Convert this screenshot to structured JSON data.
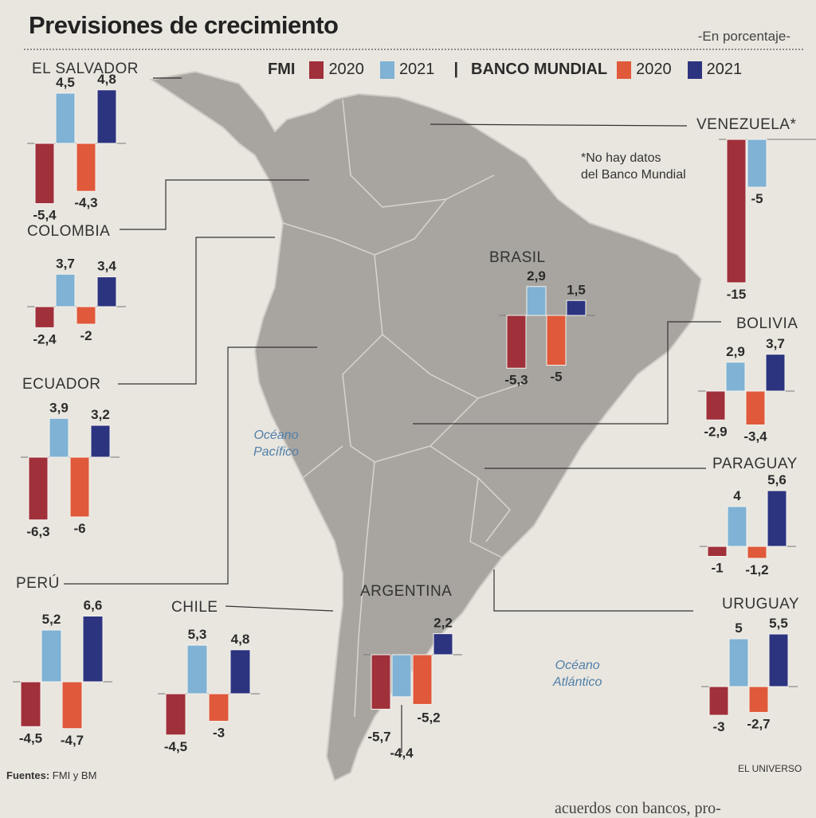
{
  "header": {
    "title": "Previsiones de crecimiento",
    "subtitle": "-En porcentaje-"
  },
  "legend": {
    "fmi_label": "FMI",
    "fmi_2020": "2020",
    "fmi_2021": "2021",
    "bm_label": "BANCO MUNDIAL",
    "bm_2020": "2020",
    "bm_2021": "2021"
  },
  "colors": {
    "fmi_2020": "#a0303a",
    "fmi_2021": "#7fb2d4",
    "bm_2020": "#e0593a",
    "bm_2021": "#2c3480",
    "map": "#a8a5a0",
    "paper": "#e9e6df"
  },
  "notes": {
    "venezuela_line1": "*No hay datos",
    "venezuela_line2": "del Banco Mundial"
  },
  "oceans": {
    "pacific_1": "Océano",
    "pacific_2": "Pacífico",
    "atlantic_1": "Océano",
    "atlantic_2": "Atlántico"
  },
  "footer": {
    "sources_label": "Fuentes:",
    "sources_value": "FMI y BM",
    "credit": "EL UNIVERSO"
  },
  "bottom_fragment": "acuerdos con bancos, pro-",
  "chart_data": {
    "type": "bar",
    "title": "Previsiones de crecimiento",
    "ylabel": "En porcentaje",
    "series_names": [
      "FMI 2020",
      "FMI 2021",
      "Banco Mundial 2020",
      "Banco Mundial 2021"
    ],
    "countries": [
      {
        "name": "EL SALVADOR",
        "values": [
          -5.4,
          4.5,
          -4.3,
          4.8
        ],
        "labels": [
          "-5,4",
          "4,5",
          "-4,3",
          "4,8"
        ]
      },
      {
        "name": "COLOMBIA",
        "values": [
          -2.4,
          3.7,
          -2,
          3.4
        ],
        "labels": [
          "-2,4",
          "3,7",
          "-2",
          "3,4"
        ]
      },
      {
        "name": "ECUADOR",
        "values": [
          -6.3,
          3.9,
          -6,
          3.2
        ],
        "labels": [
          "-6,3",
          "3,9",
          "-6",
          "3,2"
        ]
      },
      {
        "name": "PERÚ",
        "values": [
          -4.5,
          5.2,
          -4.7,
          6.6
        ],
        "labels": [
          "-4,5",
          "5,2",
          "-4,7",
          "6,6"
        ]
      },
      {
        "name": "CHILE",
        "values": [
          -4.5,
          5.3,
          -3,
          4.8
        ],
        "labels": [
          "-4,5",
          "5,3",
          "-3",
          "4,8"
        ]
      },
      {
        "name": "ARGENTINA",
        "values": [
          -5.7,
          -4.4,
          -5.2,
          2.2
        ],
        "labels": [
          "-5,7",
          "-4,4",
          "-5,2",
          "2,2"
        ]
      },
      {
        "name": "BRASIL",
        "values": [
          -5.3,
          2.9,
          -5,
          1.5
        ],
        "labels": [
          "-5,3",
          "2,9",
          "-5",
          "1,5"
        ]
      },
      {
        "name": "VENEZUELA*",
        "values": [
          -15,
          -5,
          null,
          null
        ],
        "labels": [
          "-15",
          "-5",
          "",
          ""
        ]
      },
      {
        "name": "BOLIVIA",
        "values": [
          -2.9,
          2.9,
          -3.4,
          3.7
        ],
        "labels": [
          "-2,9",
          "2,9",
          "-3,4",
          "3,7"
        ]
      },
      {
        "name": "PARAGUAY",
        "values": [
          -1,
          4,
          -1.2,
          5.6
        ],
        "labels": [
          "-1",
          "4",
          "-1,2",
          "5,6"
        ]
      },
      {
        "name": "URUGUAY",
        "values": [
          -3,
          5,
          -2.7,
          5.5
        ],
        "labels": [
          "-3",
          "5",
          "-2,7",
          "5,5"
        ]
      }
    ]
  }
}
